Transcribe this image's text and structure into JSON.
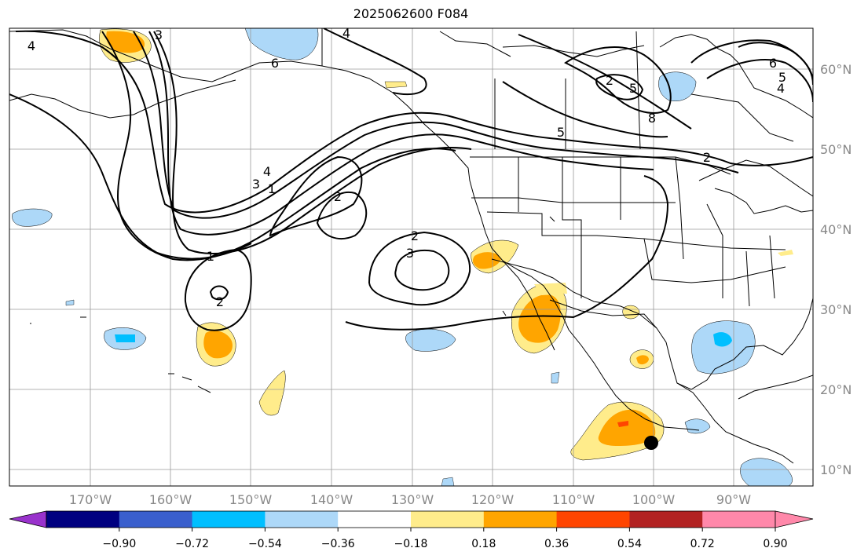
{
  "title": "2025062600 F084",
  "lon_labels": [
    "170°W",
    "160°W",
    "150°W",
    "140°W",
    "130°W",
    "120°W",
    "110°W",
    "100°W",
    "90°W"
  ],
  "lat_labels": [
    "60°N",
    "50°N",
    "40°N",
    "30°N",
    "20°N",
    "10°N"
  ],
  "colorbar": {
    "ticks": [
      "−0.90",
      "−0.72",
      "−0.54",
      "−0.36",
      "−0.18",
      "0.18",
      "0.36",
      "0.54",
      "0.72",
      "0.90"
    ],
    "under_color": "#9932cc",
    "colors": [
      "#000080",
      "#3a5fcd",
      "#00bfff",
      "#add8f8",
      "#ffffff",
      "#ffec8b",
      "#ffa500",
      "#ff4500",
      "#b22222",
      "#ff88aa"
    ],
    "over_color": "#ff88aa"
  },
  "contour_labels": [
    "4",
    "3",
    "6",
    "2",
    "5",
    "4",
    "6",
    "5",
    "4",
    "8",
    "2",
    "5",
    "3",
    "4",
    "1",
    "2",
    "2",
    "3",
    "1",
    "2"
  ],
  "palette": {
    "grid": "#9a9a9a",
    "label": "#888888",
    "coast": "#000000"
  }
}
